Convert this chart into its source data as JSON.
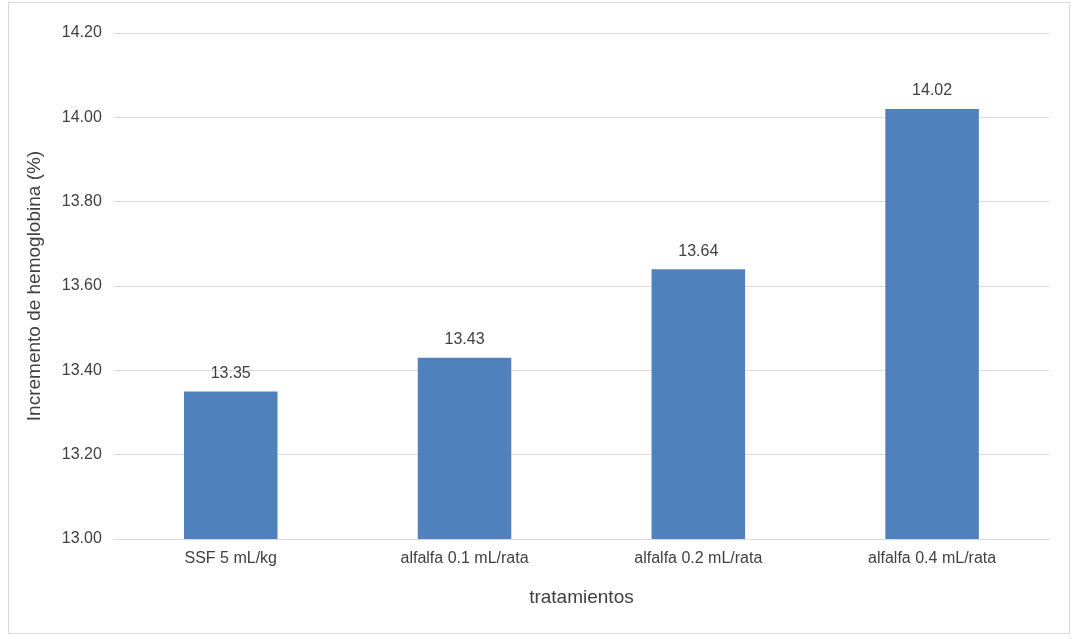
{
  "chart_data": {
    "type": "bar",
    "xlabel": "tratamientos",
    "ylabel": "Incremento de hemoglobina (%)",
    "categories": [
      "SSF 5 mL/kg",
      "alfalfa 0.1 mL/rata",
      "alfalfa 0.2 mL/rata",
      "alfalfa 0.4 mL/rata"
    ],
    "values": [
      13.35,
      13.43,
      13.64,
      14.02
    ],
    "color": "#4f81bd",
    "ylim": [
      13,
      14.2
    ],
    "yticks": [
      {
        "value": 13,
        "label": "13.00"
      },
      {
        "value": 13.2,
        "label": "13.20"
      },
      {
        "value": 13.4,
        "label": "13.40"
      },
      {
        "value": 13.6,
        "label": "13.60"
      },
      {
        "value": 13.8,
        "label": "13.80"
      },
      {
        "value": 14,
        "label": "14.00"
      },
      {
        "value": 14.2,
        "label": "14.20"
      }
    ],
    "grid": "y",
    "legend": false,
    "data_labels": true
  }
}
